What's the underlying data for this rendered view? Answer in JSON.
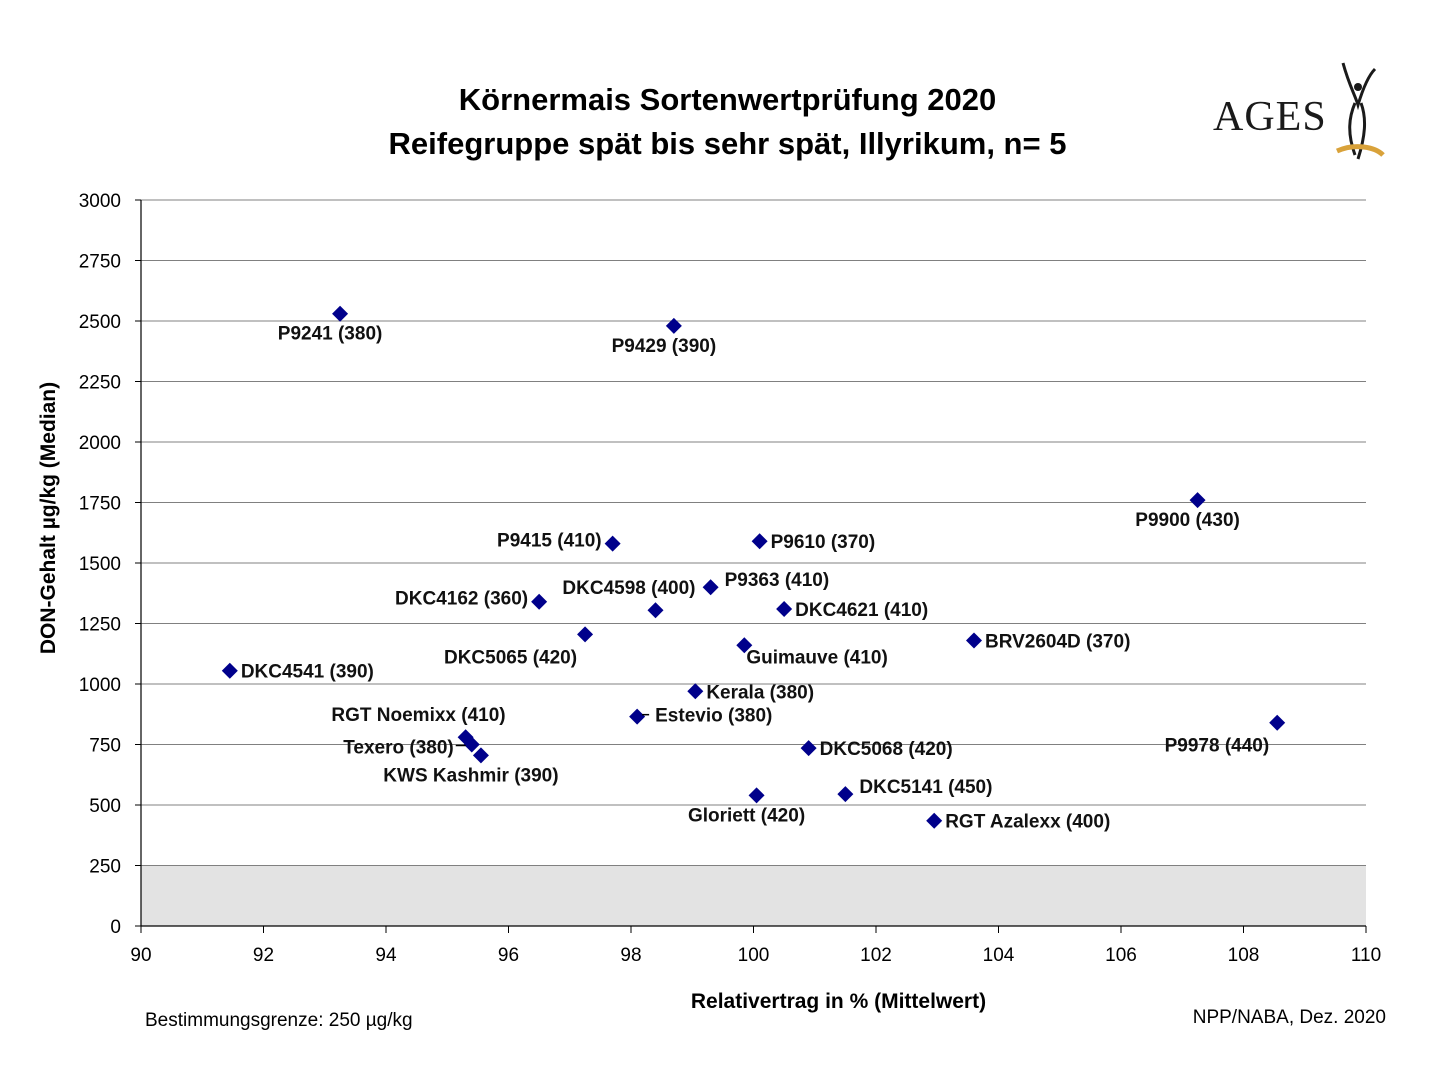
{
  "title_line1": "Körnermais Sortenwertprüfung 2020",
  "title_line2": "Reifegruppe spät bis sehr spät, Illyrikum, n= 5",
  "logo_text": "AGES",
  "footnote_left": "Bestimmungsgrenze: 250 µg/kg",
  "footnote_right": "NPP/NABA, Dez. 2020",
  "colors": {
    "marker": "#00008B",
    "grid": "#808080",
    "shade": "#e3e3e3"
  },
  "chart_data": {
    "type": "scatter",
    "xlabel": "Relativertrag in % (Mittelwert)",
    "ylabel": "DON-Gehalt µg/kg (Median)",
    "xlim": [
      90,
      110
    ],
    "ylim": [
      0,
      3000
    ],
    "xticks": [
      90,
      92,
      94,
      96,
      98,
      100,
      102,
      104,
      106,
      108,
      110
    ],
    "yticks": [
      0,
      250,
      500,
      750,
      1000,
      1250,
      1500,
      1750,
      2000,
      2250,
      2500,
      2750,
      3000
    ],
    "grid": true,
    "shaded_band": {
      "y_from": 0,
      "y_to": 250
    },
    "points": [
      {
        "label": "P9241 (380)",
        "x": 93.25,
        "y": 2530,
        "label_pos": "below"
      },
      {
        "label": "P9429 (390)",
        "x": 98.7,
        "y": 2480,
        "label_pos": "below"
      },
      {
        "label": "P9900 (430)",
        "x": 107.25,
        "y": 1760,
        "label_pos": "below"
      },
      {
        "label": "P9415 (410)",
        "x": 97.7,
        "y": 1580,
        "label_pos": "left"
      },
      {
        "label": "P9610 (370)",
        "x": 100.1,
        "y": 1590,
        "label_pos": "right"
      },
      {
        "label": "P9363 (410)",
        "x": 99.3,
        "y": 1400,
        "label_pos": "above-right"
      },
      {
        "label": "DKC4598 (400)",
        "x": 98.4,
        "y": 1305,
        "label_pos": "above-left"
      },
      {
        "label": "DKC4162 (360)",
        "x": 96.5,
        "y": 1340,
        "label_pos": "left"
      },
      {
        "label": "DKC4621 (410)",
        "x": 100.5,
        "y": 1310,
        "label_pos": "right"
      },
      {
        "label": "DKC5065 (420)",
        "x": 97.25,
        "y": 1205,
        "label_pos": "below-left"
      },
      {
        "label": "BRV2604D (370)",
        "x": 103.6,
        "y": 1180,
        "label_pos": "right"
      },
      {
        "label": "Guimauve (410)",
        "x": 99.85,
        "y": 1160,
        "label_pos": "below-right"
      },
      {
        "label": "DKC4541 (390)",
        "x": 91.45,
        "y": 1055,
        "label_pos": "right"
      },
      {
        "label": "Kerala (380)",
        "x": 99.05,
        "y": 970,
        "label_pos": "right"
      },
      {
        "label": "Estevio (380)",
        "x": 98.1,
        "y": 865,
        "label_pos": "right-dash"
      },
      {
        "label": "RGT Noemixx (410)",
        "x": 95.3,
        "y": 780,
        "label_pos": "above-left"
      },
      {
        "label": "Texero (380)",
        "x": 95.4,
        "y": 750,
        "label_pos": "left-dash"
      },
      {
        "label": "KWS Kashmir (390)",
        "x": 95.55,
        "y": 705,
        "label_pos": "below"
      },
      {
        "label": "P9978 (440)",
        "x": 108.55,
        "y": 840,
        "label_pos": "below-left"
      },
      {
        "label": "DKC5068 (420)",
        "x": 100.9,
        "y": 735,
        "label_pos": "right"
      },
      {
        "label": "DKC5141 (450)",
        "x": 101.5,
        "y": 545,
        "label_pos": "above-right"
      },
      {
        "label": "Gloriett (420)",
        "x": 100.05,
        "y": 540,
        "label_pos": "below"
      },
      {
        "label": "RGT Azalexx (400)",
        "x": 102.95,
        "y": 435,
        "label_pos": "right"
      }
    ]
  }
}
